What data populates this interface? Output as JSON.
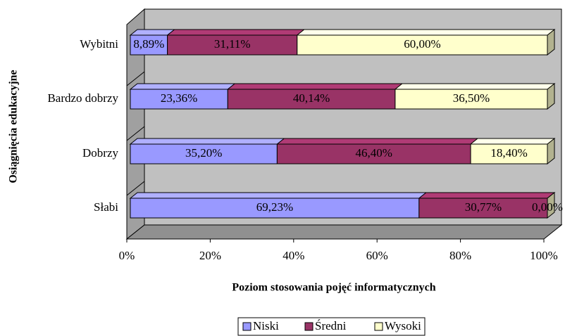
{
  "chart_data": {
    "type": "bar",
    "stacked": true,
    "orientation": "horizontal",
    "x_label": "Poziom stosowania pojęć informatycznych",
    "y_label": "Osiągnięcia edukacyjne",
    "categories": [
      "Słabi",
      "Dobrzy",
      "Bardzo dobrzy",
      "Wybitni"
    ],
    "series": [
      {
        "name": "Niski",
        "color": "#9999ff",
        "values": [
          69.23,
          35.2,
          23.36,
          8.89
        ],
        "value_labels": [
          "69,23%",
          "35,20%",
          "23,36%",
          "8,89%"
        ]
      },
      {
        "name": "Średni",
        "color": "#993366",
        "values": [
          30.77,
          46.4,
          40.14,
          31.11
        ],
        "value_labels": [
          "30,77%",
          "46,40%",
          "40,14%",
          "31,11%"
        ]
      },
      {
        "name": "Wysoki",
        "color": "#ffffcc",
        "values": [
          0,
          18.4,
          36.5,
          60.0
        ],
        "value_labels": [
          "0,00%",
          "18,40%",
          "36,50%",
          "60,00%"
        ]
      }
    ],
    "xlim": [
      0,
      100
    ],
    "xticks": [
      {
        "value": 0,
        "label": "0%"
      },
      {
        "value": 20,
        "label": "20%"
      },
      {
        "value": 40,
        "label": "40%"
      },
      {
        "value": 60,
        "label": "60%"
      },
      {
        "value": 80,
        "label": "80%"
      },
      {
        "value": 100,
        "label": "100%"
      }
    ],
    "grid": false,
    "legend": "bottom"
  }
}
